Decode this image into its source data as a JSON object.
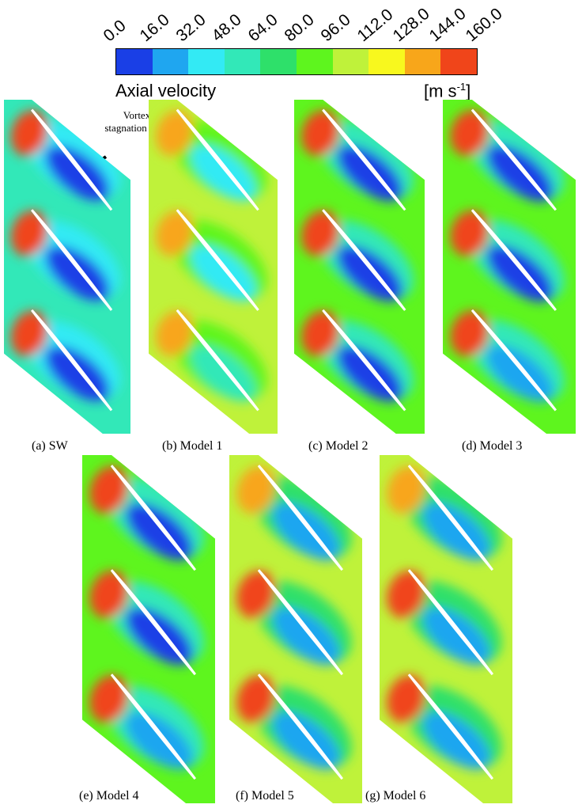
{
  "colorbar": {
    "title": "Axial velocity",
    "units_base": "[m s",
    "units_exp": "-1",
    "units_close": "]",
    "ticks": [
      "0.0",
      "16.0",
      "32.0",
      "48.0",
      "64.0",
      "80.0",
      "96.0",
      "112.0",
      "128.0",
      "144.0",
      "160.0"
    ],
    "colors": [
      "#1a3fe6",
      "#1fa6f0",
      "#33eaf4",
      "#32e8b8",
      "#2ee06a",
      "#5ef51e",
      "#bff23a",
      "#f8f81e",
      "#f8a61a",
      "#f0451a"
    ]
  },
  "annotation": {
    "line1": "Vortex",
    "line2": "stagnation zone"
  },
  "panels": [
    {
      "caption": "(a) SW",
      "style": "sw"
    },
    {
      "caption": "(b) Model 1",
      "style": "m1"
    },
    {
      "caption": "(c) Model 2",
      "style": "m2"
    },
    {
      "caption": "(d) Model 3",
      "style": "m3"
    },
    {
      "caption": "(e) Model 4",
      "style": "m4"
    },
    {
      "caption": "(f) Model 5",
      "style": "m5"
    },
    {
      "caption": "(g) Model 6",
      "style": "m6"
    }
  ]
}
